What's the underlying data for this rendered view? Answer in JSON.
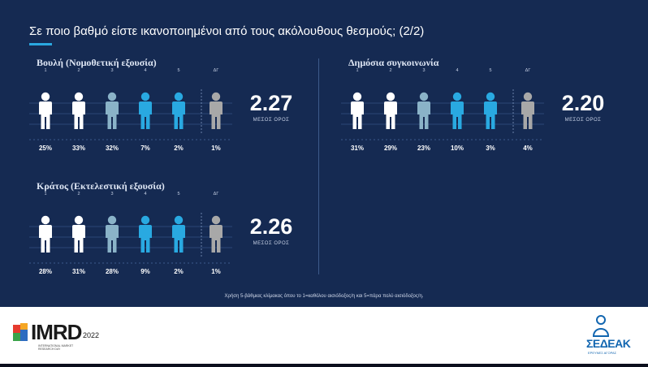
{
  "title": "Σε ποιο βαθμό είστε ικανοποιημένοι από τους ακόλουθους θεσμούς; (2/2)",
  "mean_label": "ΜΕΣΟΣ ΟΡΟΣ",
  "footnote": "Χρήση 5-βάθμιας κλίμακας όπου το 1=καθόλου αισιόδοξος/η και 5=πάρα πολύ αισιόδοξος/η.",
  "scale_labels": [
    "1",
    "2",
    "3",
    "4",
    "5",
    "ΔΓ"
  ],
  "scale_colors": [
    "#ffffff",
    "#ffffff",
    "#8ab3c8",
    "#29a9e1",
    "#29a9e1",
    "#a8a8a8"
  ],
  "chart_data": [
    {
      "type": "bar",
      "title": "Βουλή (Νομοθετική εξουσία)",
      "categories": [
        "1",
        "2",
        "3",
        "4",
        "5",
        "ΔΓ"
      ],
      "values": [
        25,
        33,
        32,
        7,
        2,
        1
      ],
      "value_labels": [
        "25%",
        "33%",
        "32%",
        "7%",
        "2%",
        "1%"
      ],
      "mean": "2.27"
    },
    {
      "type": "bar",
      "title": "Δημόσια συγκοινωνία",
      "categories": [
        "1",
        "2",
        "3",
        "4",
        "5",
        "ΔΓ"
      ],
      "values": [
        31,
        29,
        23,
        10,
        3,
        4
      ],
      "value_labels": [
        "31%",
        "29%",
        "23%",
        "10%",
        "3%",
        "4%"
      ],
      "mean": "2.20"
    },
    {
      "type": "bar",
      "title": "Κράτος (Εκτελεστική εξουσία)",
      "categories": [
        "1",
        "2",
        "3",
        "4",
        "5",
        "ΔΓ"
      ],
      "values": [
        28,
        31,
        28,
        9,
        2,
        1
      ],
      "value_labels": [
        "28%",
        "31%",
        "28%",
        "9%",
        "2%",
        "1%"
      ],
      "mean": "2.26"
    }
  ],
  "footer": {
    "imrd": {
      "name": "IMRD",
      "year": "2022",
      "subtitle": "INTERNATIONAL MARKET RESEARCH DAY"
    },
    "sedeak": {
      "name": "ΣΕΔΕΑΚ",
      "subtitle": "ΕΡΕΥΝΕΣ ΑΓΟΡΑΣ"
    }
  }
}
